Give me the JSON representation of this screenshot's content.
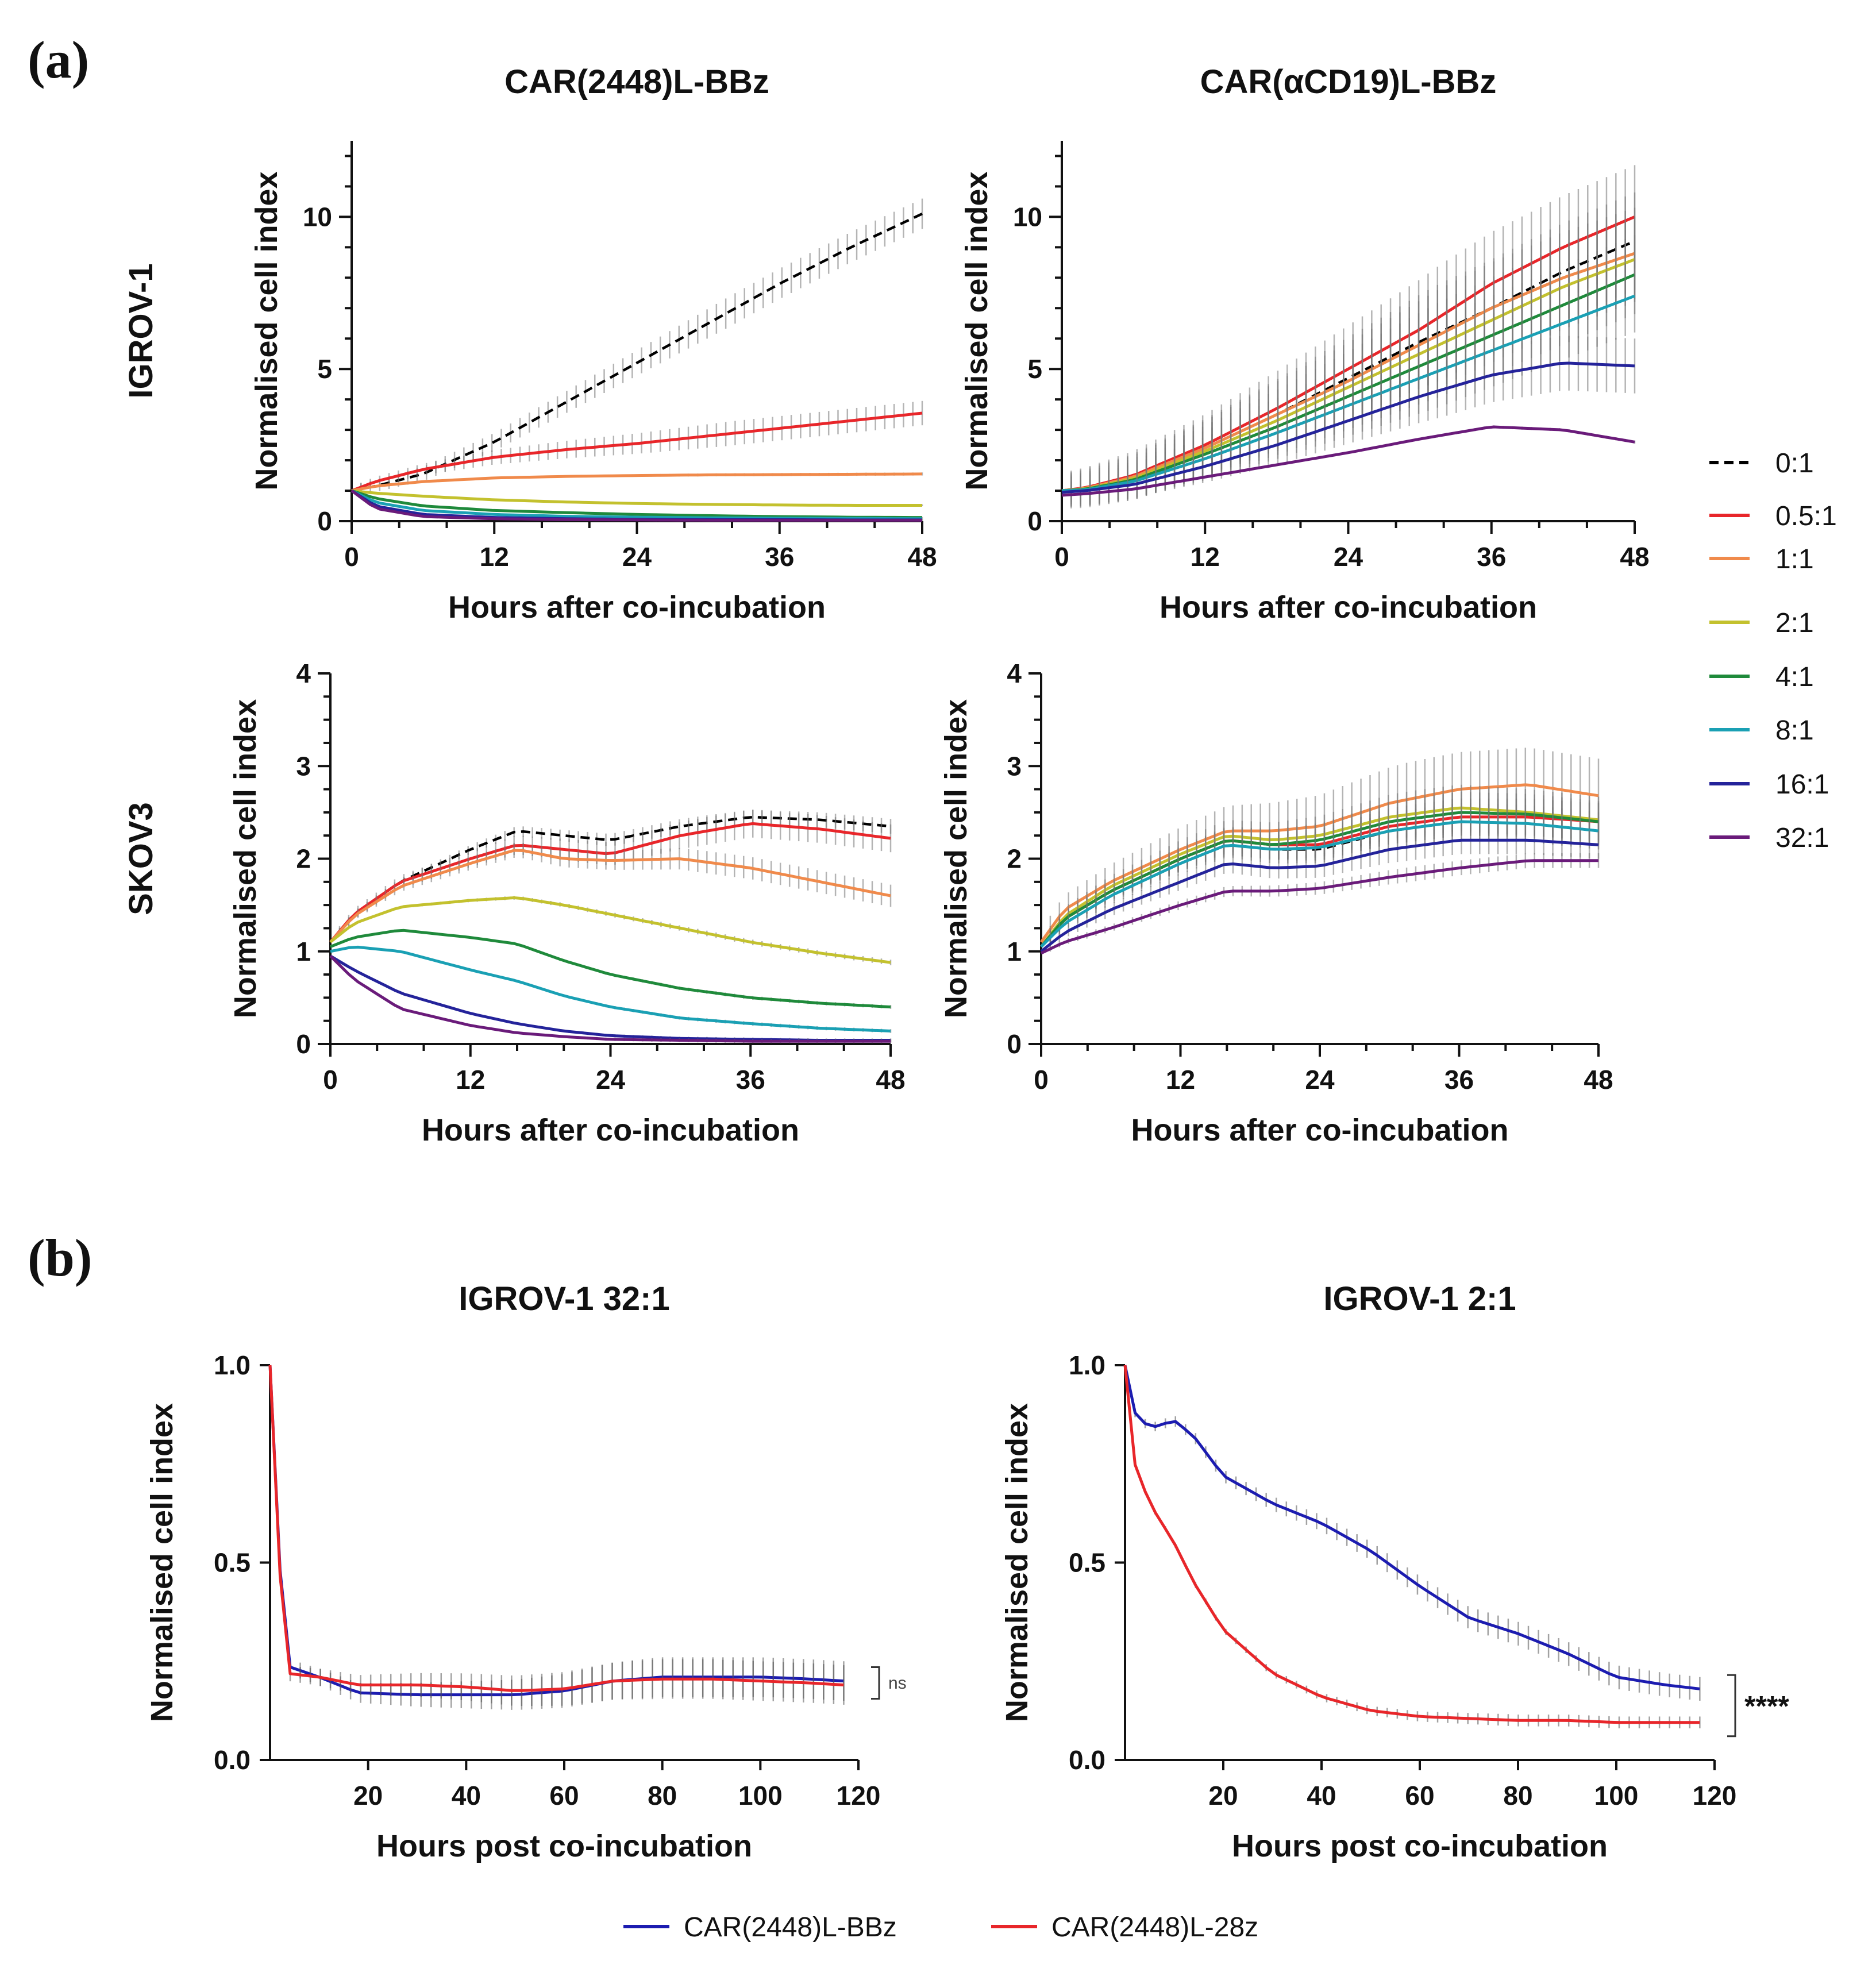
{
  "figure": {
    "panel_a_label": "(a)",
    "panel_b_label": "(b)",
    "ratio_legend": [
      "0:1",
      "0.5:1",
      "1:1",
      "2:1",
      "4:1",
      "8:1",
      "16:1",
      "32:1"
    ],
    "colors": {
      "0:1": "#000000",
      "0.5:1": "#e8262a",
      "1:1": "#f08a4b",
      "2:1": "#c3c12e",
      "4:1": "#1f8a3b",
      "8:1": "#1aa0b4",
      "16:1": "#24239a",
      "32:1": "#6a1b7a",
      "CAR(2448)L-BBz": "#1c1cb0",
      "CAR(2448)L-28z": "#e8262a"
    },
    "bottom_legend": [
      "CAR(2448)L-BBz",
      "CAR(2448)L-28z"
    ]
  },
  "chart_data": [
    {
      "id": "a1",
      "type": "line",
      "title": "CAR(2448)L-BBz",
      "row_label": "IGROV-1",
      "xlabel": "Hours after co-incubation",
      "ylabel": "Normalised cell index",
      "xlim": [
        0,
        48
      ],
      "ylim": [
        0,
        12.5
      ],
      "xticks": [
        0,
        12,
        24,
        36,
        48
      ],
      "yticks": [
        0,
        5,
        10
      ],
      "x": [
        0,
        2,
        6,
        12,
        18,
        24,
        30,
        36,
        42,
        48
      ],
      "series": [
        {
          "name": "0:1",
          "dashed": true,
          "values": [
            1.0,
            1.15,
            1.55,
            2.6,
            3.9,
            5.2,
            6.5,
            7.8,
            9.0,
            10.1
          ],
          "err": 0.5
        },
        {
          "name": "0.5:1",
          "values": [
            1.0,
            1.3,
            1.7,
            2.1,
            2.35,
            2.55,
            2.8,
            3.05,
            3.3,
            3.55
          ],
          "err": 0.4
        },
        {
          "name": "1:1",
          "values": [
            1.0,
            1.15,
            1.3,
            1.42,
            1.47,
            1.5,
            1.52,
            1.53,
            1.54,
            1.55
          ],
          "err": 0.05
        },
        {
          "name": "2:1",
          "values": [
            1.0,
            0.92,
            0.82,
            0.7,
            0.63,
            0.58,
            0.55,
            0.53,
            0.52,
            0.52
          ],
          "err": 0.03
        },
        {
          "name": "4:1",
          "values": [
            1.0,
            0.75,
            0.5,
            0.35,
            0.28,
            0.22,
            0.18,
            0.15,
            0.13,
            0.12
          ],
          "err": 0.02
        },
        {
          "name": "8:1",
          "values": [
            1.0,
            0.62,
            0.35,
            0.22,
            0.16,
            0.13,
            0.11,
            0.1,
            0.09,
            0.08
          ],
          "err": 0.02
        },
        {
          "name": "16:1",
          "values": [
            1.0,
            0.5,
            0.22,
            0.12,
            0.08,
            0.06,
            0.05,
            0.05,
            0.04,
            0.04
          ],
          "err": 0.02
        },
        {
          "name": "32:1",
          "values": [
            1.0,
            0.42,
            0.15,
            0.08,
            0.05,
            0.04,
            0.03,
            0.03,
            0.03,
            0.03
          ],
          "err": 0.02
        }
      ]
    },
    {
      "id": "a2",
      "type": "line",
      "title": "CAR(αCD19)L-BBz",
      "row_label": "",
      "xlabel": "Hours after co-incubation",
      "ylabel": "Normalised cell index",
      "xlim": [
        0,
        48
      ],
      "ylim": [
        0,
        12.5
      ],
      "xticks": [
        0,
        12,
        24,
        36,
        48
      ],
      "yticks": [
        0,
        5,
        10
      ],
      "x": [
        0,
        2,
        6,
        12,
        18,
        24,
        30,
        36,
        42,
        48
      ],
      "series": [
        {
          "name": "0:1",
          "dashed": true,
          "values": [
            1.0,
            1.1,
            1.45,
            2.4,
            3.5,
            4.7,
            5.9,
            7.0,
            8.2,
            9.2
          ],
          "err": 1.6
        },
        {
          "name": "0.5:1",
          "values": [
            1.0,
            1.1,
            1.5,
            2.5,
            3.7,
            5.0,
            6.3,
            7.8,
            9.0,
            10.0
          ],
          "err": 1.7
        },
        {
          "name": "1:1",
          "values": [
            1.0,
            1.08,
            1.45,
            2.4,
            3.5,
            4.6,
            5.8,
            7.0,
            8.0,
            8.8
          ],
          "err": 1.5
        },
        {
          "name": "2:1",
          "values": [
            1.0,
            1.06,
            1.4,
            2.3,
            3.3,
            4.4,
            5.5,
            6.6,
            7.7,
            8.6
          ],
          "err": 1.4
        },
        {
          "name": "4:1",
          "values": [
            1.0,
            1.05,
            1.35,
            2.2,
            3.1,
            4.1,
            5.1,
            6.1,
            7.1,
            8.1
          ],
          "err": 1.3
        },
        {
          "name": "8:1",
          "values": [
            1.0,
            1.03,
            1.3,
            2.05,
            2.9,
            3.8,
            4.7,
            5.6,
            6.5,
            7.4
          ],
          "err": 1.2
        },
        {
          "name": "16:1",
          "values": [
            0.95,
            1.0,
            1.2,
            1.8,
            2.5,
            3.3,
            4.1,
            4.8,
            5.2,
            5.1
          ],
          "err": 0.9
        },
        {
          "name": "32:1",
          "values": [
            0.85,
            0.9,
            1.05,
            1.45,
            1.85,
            2.25,
            2.7,
            3.1,
            3.0,
            2.6
          ],
          "err": 0.05
        }
      ]
    },
    {
      "id": "a3",
      "type": "line",
      "title": "",
      "row_label": "SKOV3",
      "xlabel": "Hours after co-incubation",
      "ylabel": "Normalised cell index",
      "xlim": [
        0,
        48
      ],
      "ylim": [
        0,
        4
      ],
      "xticks": [
        0,
        12,
        24,
        36,
        48
      ],
      "yticks": [
        0,
        1,
        2,
        3,
        4
      ],
      "x": [
        0,
        2,
        6,
        12,
        16,
        20,
        24,
        30,
        36,
        42,
        48
      ],
      "series": [
        {
          "name": "0:1",
          "dashed": true,
          "values": [
            1.1,
            1.4,
            1.75,
            2.1,
            2.3,
            2.25,
            2.2,
            2.35,
            2.45,
            2.42,
            2.35
          ],
          "err": 0.08
        },
        {
          "name": "0.5:1",
          "values": [
            1.1,
            1.4,
            1.75,
            2.0,
            2.15,
            2.1,
            2.05,
            2.25,
            2.38,
            2.32,
            2.22
          ],
          "err": 0.15
        },
        {
          "name": "1:1",
          "values": [
            1.1,
            1.38,
            1.7,
            1.95,
            2.1,
            2.0,
            1.98,
            2.0,
            1.9,
            1.75,
            1.6
          ],
          "err": 0.12
        },
        {
          "name": "2:1",
          "values": [
            1.1,
            1.3,
            1.48,
            1.55,
            1.58,
            1.5,
            1.4,
            1.25,
            1.1,
            0.98,
            0.88
          ],
          "err": 0.03
        },
        {
          "name": "4:1",
          "values": [
            1.05,
            1.15,
            1.23,
            1.15,
            1.08,
            0.9,
            0.75,
            0.6,
            0.5,
            0.44,
            0.4
          ],
          "err": 0.02
        },
        {
          "name": "8:1",
          "values": [
            1.0,
            1.05,
            1.0,
            0.8,
            0.68,
            0.52,
            0.4,
            0.28,
            0.22,
            0.17,
            0.14
          ],
          "err": 0.02
        },
        {
          "name": "16:1",
          "values": [
            0.95,
            0.8,
            0.55,
            0.33,
            0.22,
            0.14,
            0.09,
            0.06,
            0.05,
            0.04,
            0.04
          ],
          "err": 0.02
        },
        {
          "name": "32:1",
          "values": [
            0.95,
            0.7,
            0.38,
            0.2,
            0.12,
            0.08,
            0.05,
            0.04,
            0.03,
            0.03,
            0.03
          ],
          "err": 0.02
        }
      ]
    },
    {
      "id": "a4",
      "type": "line",
      "title": "",
      "row_label": "",
      "xlabel": "Hours after co-incubation",
      "ylabel": "Normalised cell index",
      "xlim": [
        0,
        48
      ],
      "ylim": [
        0,
        4
      ],
      "xticks": [
        0,
        12,
        24,
        36,
        48
      ],
      "yticks": [
        0,
        1,
        2,
        3,
        4
      ],
      "x": [
        0,
        2,
        6,
        12,
        16,
        20,
        24,
        30,
        36,
        42,
        48
      ],
      "series": [
        {
          "name": "0:1",
          "dashed": true,
          "values": [
            1.05,
            1.3,
            1.6,
            1.95,
            2.15,
            2.1,
            2.1,
            2.3,
            2.4,
            2.38,
            2.3
          ],
          "err": 0.15
        },
        {
          "name": "0.5:1",
          "values": [
            1.05,
            1.35,
            1.65,
            2.0,
            2.2,
            2.15,
            2.15,
            2.35,
            2.45,
            2.45,
            2.4
          ],
          "err": 0.2
        },
        {
          "name": "1:1",
          "values": [
            1.1,
            1.45,
            1.75,
            2.1,
            2.3,
            2.3,
            2.35,
            2.6,
            2.75,
            2.8,
            2.68
          ],
          "err": 0.4
        },
        {
          "name": "2:1",
          "values": [
            1.05,
            1.38,
            1.7,
            2.05,
            2.25,
            2.2,
            2.25,
            2.45,
            2.55,
            2.5,
            2.42
          ],
          "err": 0.25
        },
        {
          "name": "4:1",
          "values": [
            1.05,
            1.35,
            1.65,
            2.0,
            2.2,
            2.15,
            2.2,
            2.4,
            2.5,
            2.48,
            2.4
          ],
          "err": 0.22
        },
        {
          "name": "8:1",
          "values": [
            1.05,
            1.3,
            1.6,
            1.95,
            2.15,
            2.1,
            2.12,
            2.3,
            2.4,
            2.38,
            2.3
          ],
          "err": 0.2
        },
        {
          "name": "16:1",
          "values": [
            1.0,
            1.2,
            1.45,
            1.75,
            1.95,
            1.9,
            1.92,
            2.1,
            2.2,
            2.2,
            2.15
          ],
          "err": 0.15
        },
        {
          "name": "32:1",
          "values": [
            0.98,
            1.1,
            1.25,
            1.5,
            1.65,
            1.65,
            1.68,
            1.8,
            1.9,
            1.98,
            1.98
          ],
          "err": 0.08
        }
      ]
    },
    {
      "id": "b1",
      "type": "line",
      "title": "IGROV-1 32:1",
      "row_label": "",
      "xlabel": "Hours post co-incubation",
      "ylabel": "Normalised cell index",
      "xlim": [
        0,
        120
      ],
      "ylim": [
        0,
        1
      ],
      "xticks": [
        20,
        40,
        60,
        80,
        100,
        120
      ],
      "yticks": [
        0.0,
        0.5,
        1.0
      ],
      "ytick_labels": [
        "0.0",
        "0.5",
        "1.0"
      ],
      "x": [
        0,
        3,
        10,
        18,
        30,
        40,
        50,
        60,
        70,
        80,
        90,
        100,
        110,
        117
      ],
      "series": [
        {
          "name": "CAR(2448)L-BBz",
          "values": [
            1.0,
            0.24,
            0.21,
            0.17,
            0.165,
            0.165,
            0.165,
            0.175,
            0.2,
            0.21,
            0.21,
            0.21,
            0.205,
            0.2
          ],
          "err": 0.05
        },
        {
          "name": "CAR(2448)L-28z",
          "values": [
            1.0,
            0.22,
            0.21,
            0.19,
            0.19,
            0.185,
            0.175,
            0.18,
            0.2,
            0.205,
            0.205,
            0.2,
            0.195,
            0.19
          ],
          "err": 0.05
        }
      ],
      "significance": "ns"
    },
    {
      "id": "b2",
      "type": "line",
      "title": "IGROV-1 2:1",
      "row_label": "",
      "xlabel": "Hours post co-incubation",
      "ylabel": "Normalised cell index",
      "xlim": [
        0,
        120
      ],
      "ylim": [
        0,
        1
      ],
      "xticks": [
        20,
        40,
        60,
        80,
        100,
        120
      ],
      "yticks": [
        0.0,
        0.5,
        1.0
      ],
      "ytick_labels": [
        "0.0",
        "0.5",
        "1.0"
      ],
      "x": [
        0,
        2,
        5,
        10,
        14,
        20,
        30,
        40,
        50,
        60,
        70,
        80,
        90,
        100,
        110,
        117
      ],
      "series": [
        {
          "name": "CAR(2448)L-BBz",
          "values": [
            1.0,
            0.88,
            0.84,
            0.86,
            0.82,
            0.72,
            0.65,
            0.6,
            0.53,
            0.44,
            0.36,
            0.32,
            0.27,
            0.21,
            0.19,
            0.18
          ],
          "err": 0.03
        },
        {
          "name": "CAR(2448)L-28z",
          "values": [
            1.0,
            0.75,
            0.65,
            0.55,
            0.45,
            0.33,
            0.22,
            0.16,
            0.125,
            0.11,
            0.105,
            0.1,
            0.1,
            0.095,
            0.095,
            0.095
          ],
          "err": 0.015
        }
      ],
      "significance": "****"
    }
  ]
}
